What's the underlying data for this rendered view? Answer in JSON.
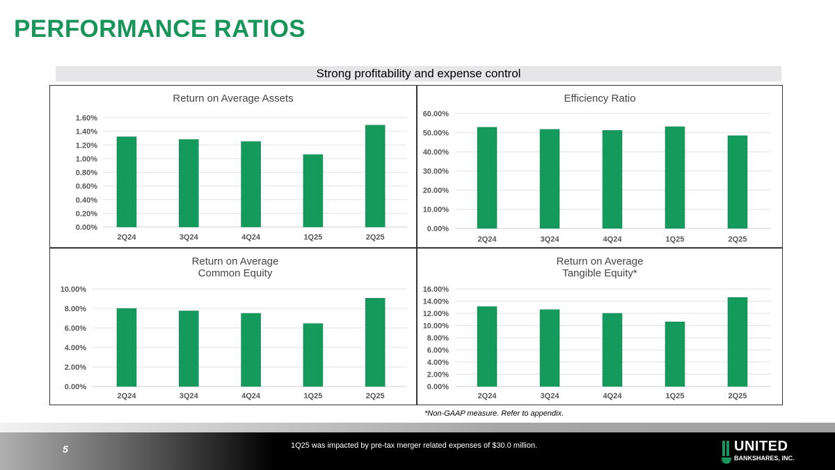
{
  "title": "PERFORMANCE RATIOS",
  "banner": "Strong profitability and expense control",
  "note": "*Non-GAAP measure.  Refer to appendix.",
  "footer": {
    "page": "5",
    "text": "1Q25 was impacted by pre-tax merger related expenses of $30.0 million.",
    "logo_line1": "UNITED",
    "logo_line2": "BANKSHARES, INC."
  },
  "colors": {
    "accent": "#17955a",
    "bar": "#159a5e"
  },
  "chart_data": [
    {
      "type": "bar",
      "title": [
        "Return on Average Assets"
      ],
      "categories": [
        "2Q24",
        "3Q24",
        "4Q24",
        "1Q25",
        "2Q25"
      ],
      "values": [
        1.32,
        1.28,
        1.25,
        1.06,
        1.49
      ],
      "ylim": [
        0,
        1.6
      ],
      "yticks": [
        "0.00%",
        "0.20%",
        "0.40%",
        "0.60%",
        "0.80%",
        "1.00%",
        "1.20%",
        "1.40%",
        "1.60%"
      ],
      "grid": true
    },
    {
      "type": "bar",
      "title": [
        "Efficiency Ratio"
      ],
      "categories": [
        "2Q24",
        "3Q24",
        "4Q24",
        "1Q25",
        "2Q25"
      ],
      "values": [
        52.8,
        51.7,
        51.2,
        53.1,
        48.4
      ],
      "ylim": [
        0,
        60
      ],
      "yticks": [
        "0.00%",
        "10.00%",
        "20.00%",
        "30.00%",
        "40.00%",
        "50.00%",
        "60.00%"
      ],
      "grid": true
    },
    {
      "type": "bar",
      "title": [
        "Return on Average",
        "Common Equity"
      ],
      "categories": [
        "2Q24",
        "3Q24",
        "4Q24",
        "1Q25",
        "2Q25"
      ],
      "values": [
        8.0,
        7.75,
        7.5,
        6.45,
        9.05
      ],
      "ylim": [
        0,
        10
      ],
      "yticks": [
        "0.00%",
        "2.00%",
        "4.00%",
        "6.00%",
        "8.00%",
        "10.00%"
      ],
      "grid": true
    },
    {
      "type": "bar",
      "title": [
        "Return on Average",
        "Tangible Equity*"
      ],
      "categories": [
        "2Q24",
        "3Q24",
        "4Q24",
        "1Q25",
        "2Q25"
      ],
      "values": [
        13.1,
        12.6,
        12.0,
        10.6,
        14.6
      ],
      "ylim": [
        0,
        16
      ],
      "yticks": [
        "0.00%",
        "2.00%",
        "4.00%",
        "6.00%",
        "8.00%",
        "10.00%",
        "12.00%",
        "14.00%",
        "16.00%"
      ],
      "grid": true
    }
  ]
}
